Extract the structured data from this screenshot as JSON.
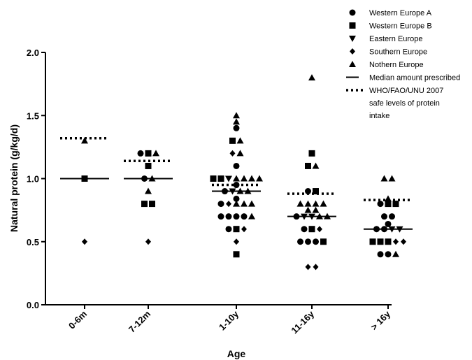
{
  "chart_data": {
    "type": "scatter",
    "title": "",
    "xlabel": "Age",
    "ylabel": "Natural protein (g/kg/d)",
    "ylim": [
      0.0,
      2.0
    ],
    "yticks": [
      "0.0",
      "0.5",
      "1.0",
      "1.5",
      "2.0"
    ],
    "categories": [
      "0-6m",
      "7-12m",
      "1-10y",
      "11-16y",
      "> 16y"
    ],
    "grid": false,
    "legend_position": "top-right",
    "legend": [
      {
        "label": "Western Europe A",
        "marker": "circle"
      },
      {
        "label": "Western Europe B",
        "marker": "square"
      },
      {
        "label": "Eastern Europe",
        "marker": "triangle-down"
      },
      {
        "label": "Southern Europe",
        "marker": "diamond"
      },
      {
        "label": "Nothern Europe",
        "marker": "triangle-up"
      },
      {
        "label": "Median amount prescribed",
        "marker": "solid-line"
      },
      {
        "label": [
          "WHO/FAO/UNU 2007",
          "safe levels of protein",
          "intake"
        ],
        "marker": "dotted-line"
      }
    ],
    "medians": [
      1.0,
      1.0,
      0.9,
      0.7,
      0.6
    ],
    "safe_levels": [
      1.32,
      1.14,
      0.95,
      0.88,
      0.83
    ],
    "series": [
      {
        "name": "Western Europe A",
        "marker": "circle",
        "points": [
          {
            "x": "7-12m",
            "y": 1.2
          },
          {
            "x": "7-12m",
            "y": 1.0
          },
          {
            "x": "1-10y",
            "y": 1.4
          },
          {
            "x": "1-10y",
            "y": 1.1
          },
          {
            "x": "1-10y",
            "y": 0.95
          },
          {
            "x": "1-10y",
            "y": 0.9
          },
          {
            "x": "1-10y",
            "y": 0.84
          },
          {
            "x": "1-10y",
            "y": 0.8
          },
          {
            "x": "1-10y",
            "y": 0.7
          },
          {
            "x": "1-10y",
            "y": 0.7
          },
          {
            "x": "1-10y",
            "y": 0.7
          },
          {
            "x": "1-10y",
            "y": 0.7
          },
          {
            "x": "1-10y",
            "y": 0.6
          },
          {
            "x": "11-16y",
            "y": 0.9
          },
          {
            "x": "11-16y",
            "y": 0.7
          },
          {
            "x": "11-16y",
            "y": 0.6
          },
          {
            "x": "11-16y",
            "y": 0.5
          },
          {
            "x": "11-16y",
            "y": 0.5
          },
          {
            "x": "11-16y",
            "y": 0.5
          },
          {
            "x": "> 16y",
            "y": 0.8
          },
          {
            "x": "> 16y",
            "y": 0.7
          },
          {
            "x": "> 16y",
            "y": 0.7
          },
          {
            "x": "> 16y",
            "y": 0.64
          },
          {
            "x": "> 16y",
            "y": 0.6
          },
          {
            "x": "> 16y",
            "y": 0.6
          },
          {
            "x": "> 16y",
            "y": 0.4
          },
          {
            "x": "> 16y",
            "y": 0.4
          }
        ]
      },
      {
        "name": "Western Europe B",
        "marker": "square",
        "points": [
          {
            "x": "0-6m",
            "y": 1.0
          },
          {
            "x": "7-12m",
            "y": 1.2
          },
          {
            "x": "7-12m",
            "y": 1.1
          },
          {
            "x": "7-12m",
            "y": 0.8
          },
          {
            "x": "7-12m",
            "y": 0.8
          },
          {
            "x": "1-10y",
            "y": 1.3
          },
          {
            "x": "1-10y",
            "y": 1.0
          },
          {
            "x": "1-10y",
            "y": 1.0
          },
          {
            "x": "1-10y",
            "y": 0.6
          },
          {
            "x": "1-10y",
            "y": 0.4
          },
          {
            "x": "11-16y",
            "y": 1.2
          },
          {
            "x": "11-16y",
            "y": 1.1
          },
          {
            "x": "11-16y",
            "y": 0.9
          },
          {
            "x": "11-16y",
            "y": 0.6
          },
          {
            "x": "11-16y",
            "y": 0.5
          },
          {
            "x": "> 16y",
            "y": 0.8
          },
          {
            "x": "> 16y",
            "y": 0.8
          },
          {
            "x": "> 16y",
            "y": 0.5
          },
          {
            "x": "> 16y",
            "y": 0.5
          },
          {
            "x": "> 16y",
            "y": 0.5
          }
        ]
      },
      {
        "name": "Eastern Europe",
        "marker": "triangle-down",
        "points": [
          {
            "x": "1-10y",
            "y": 1.0
          },
          {
            "x": "1-10y",
            "y": 0.9
          },
          {
            "x": "11-16y",
            "y": 0.7
          },
          {
            "x": "11-16y",
            "y": 0.7
          },
          {
            "x": "> 16y",
            "y": 0.6
          },
          {
            "x": "> 16y",
            "y": 0.6
          }
        ]
      },
      {
        "name": "Southern Europe",
        "marker": "diamond",
        "points": [
          {
            "x": "0-6m",
            "y": 0.5
          },
          {
            "x": "7-12m",
            "y": 0.5
          },
          {
            "x": "1-10y",
            "y": 1.2
          },
          {
            "x": "1-10y",
            "y": 0.8
          },
          {
            "x": "1-10y",
            "y": 0.6
          },
          {
            "x": "1-10y",
            "y": 0.5
          },
          {
            "x": "11-16y",
            "y": 0.6
          },
          {
            "x": "11-16y",
            "y": 0.3
          },
          {
            "x": "11-16y",
            "y": 0.3
          },
          {
            "x": "> 16y",
            "y": 0.5
          },
          {
            "x": "> 16y",
            "y": 0.5
          }
        ]
      },
      {
        "name": "Nothern Europe",
        "marker": "triangle-up",
        "points": [
          {
            "x": "0-6m",
            "y": 1.3
          },
          {
            "x": "7-12m",
            "y": 1.2
          },
          {
            "x": "7-12m",
            "y": 1.0
          },
          {
            "x": "7-12m",
            "y": 0.9
          },
          {
            "x": "1-10y",
            "y": 1.5
          },
          {
            "x": "1-10y",
            "y": 1.45
          },
          {
            "x": "1-10y",
            "y": 1.3
          },
          {
            "x": "1-10y",
            "y": 1.2
          },
          {
            "x": "1-10y",
            "y": 1.0
          },
          {
            "x": "1-10y",
            "y": 1.0
          },
          {
            "x": "1-10y",
            "y": 1.0
          },
          {
            "x": "1-10y",
            "y": 1.0
          },
          {
            "x": "1-10y",
            "y": 0.9
          },
          {
            "x": "1-10y",
            "y": 0.9
          },
          {
            "x": "1-10y",
            "y": 0.8
          },
          {
            "x": "1-10y",
            "y": 0.8
          },
          {
            "x": "1-10y",
            "y": 0.8
          },
          {
            "x": "1-10y",
            "y": 0.7
          },
          {
            "x": "11-16y",
            "y": 1.8
          },
          {
            "x": "11-16y",
            "y": 1.1
          },
          {
            "x": "11-16y",
            "y": 0.8
          },
          {
            "x": "11-16y",
            "y": 0.8
          },
          {
            "x": "11-16y",
            "y": 0.8
          },
          {
            "x": "11-16y",
            "y": 0.8
          },
          {
            "x": "11-16y",
            "y": 0.75
          },
          {
            "x": "11-16y",
            "y": 0.75
          },
          {
            "x": "11-16y",
            "y": 0.7
          },
          {
            "x": "11-16y",
            "y": 0.7
          },
          {
            "x": "> 16y",
            "y": 1.0
          },
          {
            "x": "> 16y",
            "y": 1.0
          },
          {
            "x": "> 16y",
            "y": 0.84
          },
          {
            "x": "> 16y",
            "y": 0.4
          }
        ]
      }
    ]
  }
}
